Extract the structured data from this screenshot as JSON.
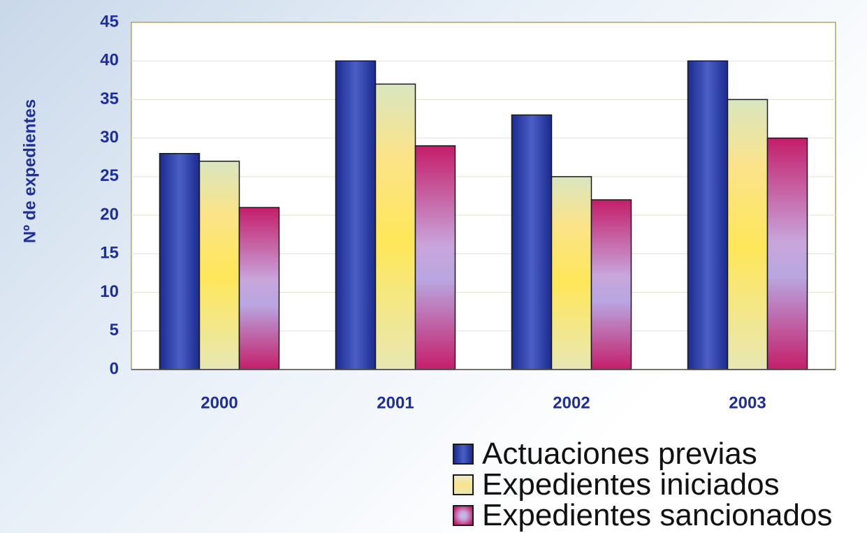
{
  "chart_data": {
    "type": "bar",
    "title": "",
    "xlabel": "",
    "ylabel": "Nº de expedientes",
    "ylim": [
      0,
      45
    ],
    "yticks": [
      0,
      5,
      10,
      15,
      20,
      25,
      30,
      35,
      40,
      45
    ],
    "ytick_labels": [
      "0",
      "5",
      "10",
      "15",
      "20",
      "25",
      "30",
      "35",
      "40",
      "45"
    ],
    "categories": [
      "2000",
      "2001",
      "2002",
      "2003"
    ],
    "grid": true,
    "legend_position": "bottom-right",
    "series": [
      {
        "name": "Actuaciones previas",
        "values": [
          28,
          40,
          33,
          40
        ],
        "color": "#2a3aa8"
      },
      {
        "name": "Expedientes iniciados",
        "values": [
          27,
          37,
          25,
          35
        ],
        "color": "#f4e58a"
      },
      {
        "name": "Expedientes sancionados",
        "values": [
          21,
          29,
          22,
          30
        ],
        "color": "#d8307a"
      }
    ]
  }
}
